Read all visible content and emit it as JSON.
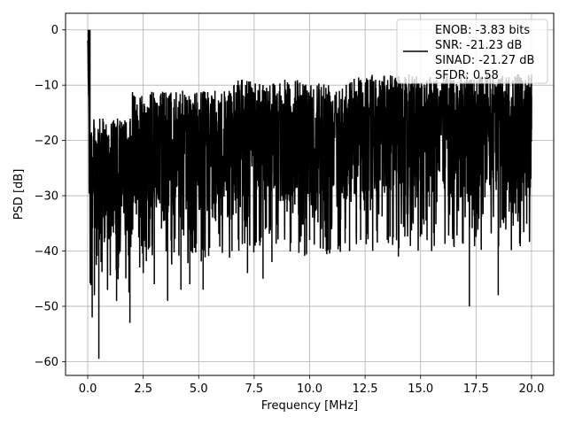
{
  "chart_data": {
    "type": "line",
    "xlabel": "Frequency [MHz]",
    "ylabel": "PSD [dB]",
    "xlim": [
      -1.0,
      21.0
    ],
    "ylim": [
      -62.5,
      3.0
    ],
    "xticks": [
      0.0,
      2.5,
      5.0,
      7.5,
      10.0,
      12.5,
      15.0,
      17.5,
      20.0
    ],
    "xtick_labels": [
      "0.0",
      "2.5",
      "5.0",
      "7.5",
      "10.0",
      "12.5",
      "15.0",
      "17.5",
      "20.0"
    ],
    "yticks": [
      0,
      -10,
      -20,
      -30,
      -40,
      -50,
      -60
    ],
    "ytick_labels": [
      "0",
      "−10",
      "−20",
      "−30",
      "−40",
      "−50",
      "−60"
    ],
    "grid": true,
    "legend_position": "top-right",
    "line_color": "#000000",
    "legend": [
      "ENOB: -3.83 bits",
      "SNR: -21.23 dB",
      "SINAD: -21.27 dB",
      "SFDR: 0.58"
    ],
    "series": [
      {
        "description_note": "noise-like PSD spectrum from 0 to 20 MHz; values mostly between -35 and -8 dB with a peak near 0 dB at DC",
        "x": [
          0.0,
          0.02,
          0.05,
          0.08,
          0.1,
          0.15,
          0.2,
          0.3,
          0.5,
          0.6,
          1.3,
          1.9,
          2.5,
          3.0,
          3.6,
          4.2,
          4.6,
          5.2,
          6.5,
          7.2,
          7.9,
          8.3,
          10.0,
          11.8,
          12.3,
          13.5,
          14.0,
          15.5,
          16.5,
          17.2,
          18.5,
          19.5,
          20.0
        ],
        "y": [
          0.0,
          -4.0,
          -8.0,
          -15.0,
          -27.0,
          -46.0,
          -52.0,
          -48.0,
          -59.5,
          -42.0,
          -49.0,
          -53.0,
          -44.0,
          -46.0,
          -49.0,
          -47.0,
          -46.0,
          -47.0,
          -40.0,
          -44.0,
          -45.0,
          -42.0,
          -38.0,
          -40.0,
          -38.0,
          -38.0,
          -41.0,
          -40.0,
          -39.0,
          -50.0,
          -48.0,
          -37.0,
          -12.0
        ]
      }
    ],
    "upper_envelope_hint": [
      {
        "x_range": [
          0.1,
          2.0
        ],
        "top": -16
      },
      {
        "x_range": [
          2.0,
          6.5
        ],
        "top": -11
      },
      {
        "x_range": [
          6.5,
          12.0
        ],
        "top": -9
      },
      {
        "x_range": [
          12.0,
          20.0
        ],
        "top": -8
      }
    ]
  }
}
